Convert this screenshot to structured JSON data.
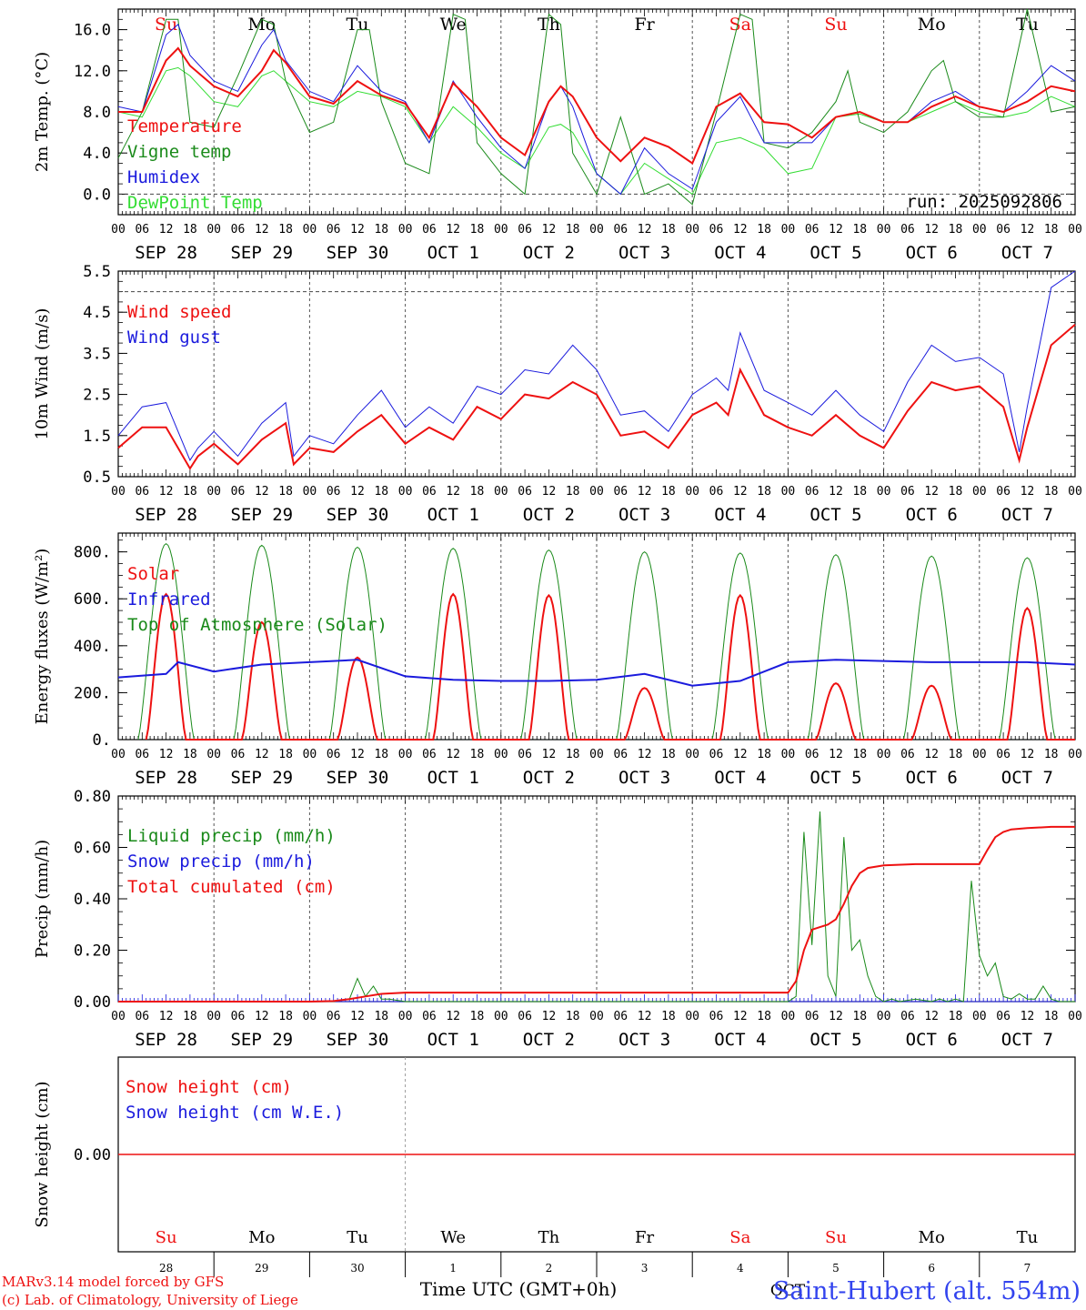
{
  "colors": {
    "red": "#ee1111",
    "green": "#1a8a1a",
    "blue": "#1b1bdd",
    "lightgreen": "#33dd33",
    "axis": "#000000",
    "grid": "#555555",
    "sig_blue": "#3344ee"
  },
  "footer": {
    "model": "MARv3.14 model forced by GFS",
    "lab": "(c) Lab. of Climatology, University of Liege",
    "axis_title": "Time UTC (GMT+0h)",
    "station": "Saint-Hubert (alt. 554m)",
    "month_label": "OCT"
  },
  "time_axis": {
    "hour_labels": [
      "00",
      "06",
      "12",
      "18"
    ],
    "end_label": "00",
    "date_labels": [
      "SEP 28",
      "SEP 29",
      "SEP 30",
      "OCT  1",
      "OCT  2",
      "OCT  3",
      "OCT  4",
      "OCT  5",
      "OCT  6",
      "OCT  7"
    ],
    "day_numbers": [
      "28",
      "29",
      "30",
      "1",
      "2",
      "3",
      "4",
      "5",
      "6",
      "7"
    ],
    "weekdays": [
      {
        "label": "Su",
        "color": "#ee1111"
      },
      {
        "label": "Mo",
        "color": "#000000"
      },
      {
        "label": "Tu",
        "color": "#000000"
      },
      {
        "label": "We",
        "color": "#000000"
      },
      {
        "label": "Th",
        "color": "#000000"
      },
      {
        "label": "Fr",
        "color": "#000000"
      },
      {
        "label": "Sa",
        "color": "#ee1111"
      },
      {
        "label": "Su",
        "color": "#ee1111"
      },
      {
        "label": "Mo",
        "color": "#000000"
      },
      {
        "label": "Tu",
        "color": "#000000"
      }
    ]
  },
  "chart_data": [
    {
      "type": "line",
      "id": "temp",
      "title": "",
      "xlabel": "",
      "ylabel": "2m Temp. (°C)",
      "xlim": [
        0,
        240
      ],
      "ylim": [
        -2,
        18
      ],
      "yticks": [
        0,
        4,
        8,
        12,
        16
      ],
      "ytick_labels": [
        "0.0",
        "4.0",
        "8.0",
        "12.0",
        "16.0"
      ],
      "ref_line": 0,
      "annotation": "run: 2025092806",
      "legend": [
        "Temperature",
        "Vigne temp",
        "Humidex",
        "DewPoint Temp"
      ],
      "series": [
        {
          "name": "Temperature",
          "color": "#ee1111",
          "width": 2,
          "x": [
            0,
            6,
            12,
            15,
            18,
            24,
            30,
            36,
            39,
            42,
            48,
            54,
            60,
            66,
            72,
            78,
            84,
            90,
            96,
            102,
            108,
            111,
            114,
            120,
            126,
            132,
            138,
            144,
            150,
            156,
            162,
            168,
            174,
            180,
            186,
            192,
            198,
            204,
            210,
            216,
            222,
            228,
            234,
            240
          ],
          "y": [
            8.0,
            8.0,
            13.0,
            14.2,
            12.5,
            10.5,
            9.5,
            12.0,
            14.0,
            12.8,
            9.5,
            8.8,
            11.0,
            9.6,
            8.8,
            5.5,
            10.8,
            8.5,
            5.5,
            3.8,
            9.0,
            10.5,
            9.5,
            5.5,
            3.2,
            5.5,
            4.6,
            3.0,
            8.5,
            9.8,
            7.0,
            6.8,
            5.5,
            7.5,
            8.0,
            7.0,
            7.0,
            8.5,
            9.5,
            8.5,
            8.0,
            9.0,
            10.5,
            10.0
          ]
        },
        {
          "name": "Vigne temp",
          "color": "#1a8a1a",
          "width": 1,
          "x": [
            0,
            6,
            12,
            15,
            18,
            24,
            30,
            36,
            39,
            42,
            48,
            54,
            60,
            63,
            66,
            72,
            78,
            84,
            87,
            90,
            96,
            102,
            108,
            111,
            114,
            120,
            126,
            132,
            138,
            144,
            150,
            156,
            159,
            162,
            168,
            174,
            180,
            183,
            186,
            192,
            198,
            204,
            207,
            210,
            216,
            222,
            228,
            234,
            240
          ],
          "y": [
            3.5,
            8.0,
            17.0,
            17.0,
            7.0,
            6.5,
            11.5,
            17.0,
            16.5,
            11.0,
            6.0,
            7.0,
            16.0,
            16.0,
            9.0,
            3.0,
            2.0,
            17.5,
            17.0,
            5.0,
            2.0,
            0.0,
            17.5,
            16.5,
            4.0,
            0.0,
            7.5,
            0.0,
            1.0,
            -1.0,
            8.0,
            17.5,
            17.0,
            5.0,
            4.5,
            6.0,
            9.0,
            12.0,
            7.0,
            6.0,
            8.0,
            12.0,
            13.0,
            9.0,
            7.5,
            7.5,
            18.0,
            8.0,
            8.5
          ]
        },
        {
          "name": "Humidex",
          "color": "#1b1bdd",
          "width": 1,
          "x": [
            0,
            6,
            12,
            15,
            18,
            24,
            30,
            36,
            39,
            42,
            48,
            54,
            60,
            66,
            72,
            78,
            84,
            90,
            96,
            102,
            108,
            111,
            114,
            120,
            126,
            132,
            138,
            144,
            150,
            156,
            162,
            168,
            174,
            180,
            186,
            192,
            198,
            204,
            210,
            216,
            222,
            228,
            234,
            240
          ],
          "y": [
            8.5,
            8.0,
            15.5,
            16.5,
            13.5,
            11.0,
            10.0,
            14.5,
            16.0,
            13.0,
            10.0,
            9.0,
            12.5,
            10.0,
            9.0,
            5.0,
            11.0,
            7.5,
            4.5,
            2.5,
            9.0,
            10.5,
            8.5,
            2.0,
            0.0,
            4.5,
            2.0,
            0.5,
            7.0,
            9.5,
            5.0,
            5.0,
            5.0,
            7.5,
            8.0,
            7.0,
            7.0,
            9.0,
            10.0,
            8.5,
            8.0,
            10.0,
            12.5,
            11.0
          ]
        },
        {
          "name": "DewPoint Temp",
          "color": "#33dd33",
          "width": 1,
          "x": [
            0,
            6,
            12,
            15,
            18,
            24,
            30,
            36,
            39,
            42,
            48,
            54,
            60,
            66,
            72,
            78,
            84,
            90,
            96,
            102,
            108,
            111,
            114,
            120,
            126,
            132,
            138,
            144,
            150,
            156,
            162,
            168,
            174,
            180,
            186,
            192,
            198,
            204,
            210,
            216,
            222,
            228,
            234,
            240
          ],
          "y": [
            8.0,
            7.5,
            12.0,
            12.3,
            11.5,
            9.0,
            8.5,
            11.5,
            12.0,
            11.0,
            9.0,
            8.5,
            10.0,
            9.5,
            8.5,
            5.0,
            8.5,
            6.5,
            4.0,
            2.5,
            6.5,
            6.8,
            6.0,
            2.0,
            0.0,
            3.0,
            1.5,
            0.0,
            5.0,
            5.5,
            4.5,
            2.0,
            2.5,
            7.5,
            7.8,
            7.0,
            7.0,
            8.0,
            9.0,
            8.0,
            7.5,
            8.0,
            9.5,
            8.5
          ]
        }
      ]
    },
    {
      "type": "line",
      "id": "wind",
      "title": "",
      "xlabel": "",
      "ylabel": "10m Wind (m/s)",
      "xlim": [
        0,
        240
      ],
      "ylim": [
        0.5,
        5.5
      ],
      "yticks": [
        0.5,
        1.5,
        2.5,
        3.5,
        4.5,
        5.5
      ],
      "ytick_labels": [
        "0.5",
        "1.5",
        "2.5",
        "3.5",
        "4.5",
        "5.5"
      ],
      "ref_line": 5.0,
      "legend": [
        "Wind speed",
        "Wind gust"
      ],
      "series": [
        {
          "name": "Wind speed",
          "color": "#ee1111",
          "width": 2,
          "x": [
            0,
            6,
            12,
            18,
            20,
            24,
            30,
            36,
            42,
            44,
            48,
            54,
            60,
            66,
            72,
            78,
            84,
            90,
            96,
            102,
            108,
            114,
            120,
            126,
            132,
            138,
            144,
            150,
            153,
            156,
            162,
            168,
            174,
            180,
            186,
            192,
            198,
            204,
            210,
            216,
            222,
            226,
            228,
            234,
            240
          ],
          "y": [
            1.2,
            1.7,
            1.7,
            0.7,
            1.0,
            1.3,
            0.8,
            1.4,
            1.8,
            0.8,
            1.2,
            1.1,
            1.6,
            2.0,
            1.3,
            1.7,
            1.4,
            2.2,
            1.9,
            2.5,
            2.4,
            2.8,
            2.5,
            1.5,
            1.6,
            1.2,
            2.0,
            2.3,
            2.0,
            3.1,
            2.0,
            1.7,
            1.5,
            2.0,
            1.5,
            1.2,
            2.1,
            2.8,
            2.6,
            2.7,
            2.2,
            0.9,
            1.7,
            3.7,
            4.2
          ]
        },
        {
          "name": "Wind gust",
          "color": "#1b1bdd",
          "width": 1,
          "x": [
            0,
            6,
            12,
            18,
            20,
            24,
            30,
            36,
            42,
            44,
            48,
            54,
            60,
            66,
            72,
            78,
            84,
            90,
            96,
            102,
            108,
            114,
            120,
            126,
            132,
            138,
            144,
            150,
            153,
            156,
            162,
            168,
            174,
            180,
            186,
            192,
            198,
            204,
            210,
            216,
            222,
            226,
            228,
            234,
            240
          ],
          "y": [
            1.5,
            2.2,
            2.3,
            0.9,
            1.2,
            1.6,
            1.0,
            1.8,
            2.3,
            1.0,
            1.5,
            1.3,
            2.0,
            2.6,
            1.7,
            2.2,
            1.8,
            2.7,
            2.5,
            3.1,
            3.0,
            3.7,
            3.1,
            2.0,
            2.1,
            1.6,
            2.5,
            2.9,
            2.6,
            4.0,
            2.6,
            2.3,
            2.0,
            2.6,
            2.0,
            1.6,
            2.8,
            3.7,
            3.3,
            3.4,
            3.0,
            1.1,
            2.2,
            5.1,
            5.5
          ]
        }
      ]
    },
    {
      "type": "line",
      "id": "energy",
      "title": "",
      "xlabel": "",
      "ylabel": "Energy fluxes (W/m²)",
      "xlim": [
        0,
        240
      ],
      "ylim": [
        0,
        880
      ],
      "yticks": [
        0,
        200,
        400,
        600,
        800
      ],
      "ytick_labels": [
        "0.",
        "200.",
        "400.",
        "600.",
        "800."
      ],
      "legend": [
        "Solar",
        "Infrared",
        "Top of Atmosphere (Solar)"
      ],
      "toa_peaks": [
        835,
        828,
        820,
        815,
        808,
        800,
        795,
        788,
        782,
        775
      ],
      "solar_peaks": [
        620,
        500,
        350,
        620,
        615,
        220,
        615,
        240,
        230,
        560
      ],
      "infrared": {
        "x": [
          0,
          12,
          15,
          24,
          36,
          48,
          60,
          72,
          84,
          96,
          108,
          120,
          132,
          144,
          156,
          168,
          180,
          192,
          204,
          216,
          228,
          240
        ],
        "y": [
          265,
          280,
          330,
          290,
          320,
          330,
          340,
          270,
          255,
          250,
          250,
          255,
          280,
          230,
          250,
          330,
          340,
          335,
          330,
          330,
          330,
          320
        ]
      },
      "series": [
        {
          "name": "Solar",
          "color": "#ee1111",
          "width": 2
        },
        {
          "name": "Infrared",
          "color": "#1b1bdd",
          "width": 2
        },
        {
          "name": "Top of Atmosphere (Solar)",
          "color": "#1a8a1a",
          "width": 1
        }
      ]
    },
    {
      "type": "line",
      "id": "precip",
      "title": "",
      "xlabel": "",
      "ylabel": "Precip (mm/h)",
      "xlim": [
        0,
        240
      ],
      "ylim": [
        0,
        0.8
      ],
      "yticks": [
        0,
        0.2,
        0.4,
        0.6,
        0.8
      ],
      "ytick_labels": [
        "0.00",
        "0.20",
        "0.40",
        "0.60",
        "0.80"
      ],
      "legend": [
        "Liquid precip (mm/h)",
        "Snow precip (mm/h)",
        "Total cumulated (cm)"
      ],
      "series": [
        {
          "name": "Liquid precip (mm/h)",
          "color": "#1a8a1a",
          "width": 1,
          "x": [
            0,
            48,
            54,
            58,
            60,
            62,
            64,
            66,
            68,
            72,
            168,
            170,
            172,
            174,
            176,
            178,
            180,
            182,
            184,
            186,
            188,
            190,
            192,
            194,
            196,
            200,
            204,
            206,
            208,
            210,
            212,
            214,
            216,
            218,
            220,
            222,
            224,
            226,
            228,
            230,
            232,
            234,
            236,
            238,
            240
          ],
          "y": [
            0,
            0,
            0,
            0.01,
            0.09,
            0.02,
            0.06,
            0.01,
            0.01,
            0,
            0,
            0.02,
            0.66,
            0.22,
            0.74,
            0.1,
            0.02,
            0.64,
            0.2,
            0.24,
            0.1,
            0.02,
            0,
            0.01,
            0,
            0.01,
            0,
            0.01,
            0,
            0.01,
            0,
            0.47,
            0.18,
            0.1,
            0.15,
            0.02,
            0.01,
            0.03,
            0.01,
            0.01,
            0.06,
            0.01,
            0,
            0,
            0
          ]
        },
        {
          "name": "Snow precip (mm/h)",
          "color": "#1b1bdd",
          "width": 1,
          "x": [
            0,
            240
          ],
          "y": [
            0,
            0
          ]
        },
        {
          "name": "Total cumulated (cm)",
          "color": "#ee1111",
          "width": 2,
          "x": [
            0,
            48,
            54,
            58,
            62,
            66,
            72,
            168,
            170,
            172,
            174,
            176,
            178,
            180,
            182,
            184,
            186,
            188,
            192,
            200,
            216,
            218,
            220,
            222,
            224,
            228,
            234,
            240
          ],
          "y": [
            0,
            0,
            0.002,
            0.01,
            0.02,
            0.03,
            0.035,
            0.035,
            0.08,
            0.2,
            0.28,
            0.29,
            0.3,
            0.32,
            0.38,
            0.45,
            0.5,
            0.52,
            0.53,
            0.535,
            0.535,
            0.59,
            0.64,
            0.66,
            0.67,
            0.675,
            0.68,
            0.68
          ]
        }
      ]
    },
    {
      "type": "line",
      "id": "snow",
      "title": "",
      "xlabel": "Time UTC (GMT+0h)",
      "ylabel": "Snow height (cm)",
      "xlim": [
        0,
        240
      ],
      "ylim": [
        -1,
        1
      ],
      "yticks": [
        0
      ],
      "ytick_labels": [
        "0.00"
      ],
      "legend": [
        "Snow height (cm)",
        "Snow height (cm W.E.)"
      ],
      "series": [
        {
          "name": "Snow height (cm)",
          "color": "#ee1111",
          "width": 1.5,
          "x": [
            0,
            240
          ],
          "y": [
            0,
            0
          ]
        },
        {
          "name": "Snow height (cm W.E.)",
          "color": "#1b1bdd",
          "width": 1.5,
          "x": [
            0,
            240
          ],
          "y": [
            0,
            0
          ]
        }
      ]
    }
  ]
}
